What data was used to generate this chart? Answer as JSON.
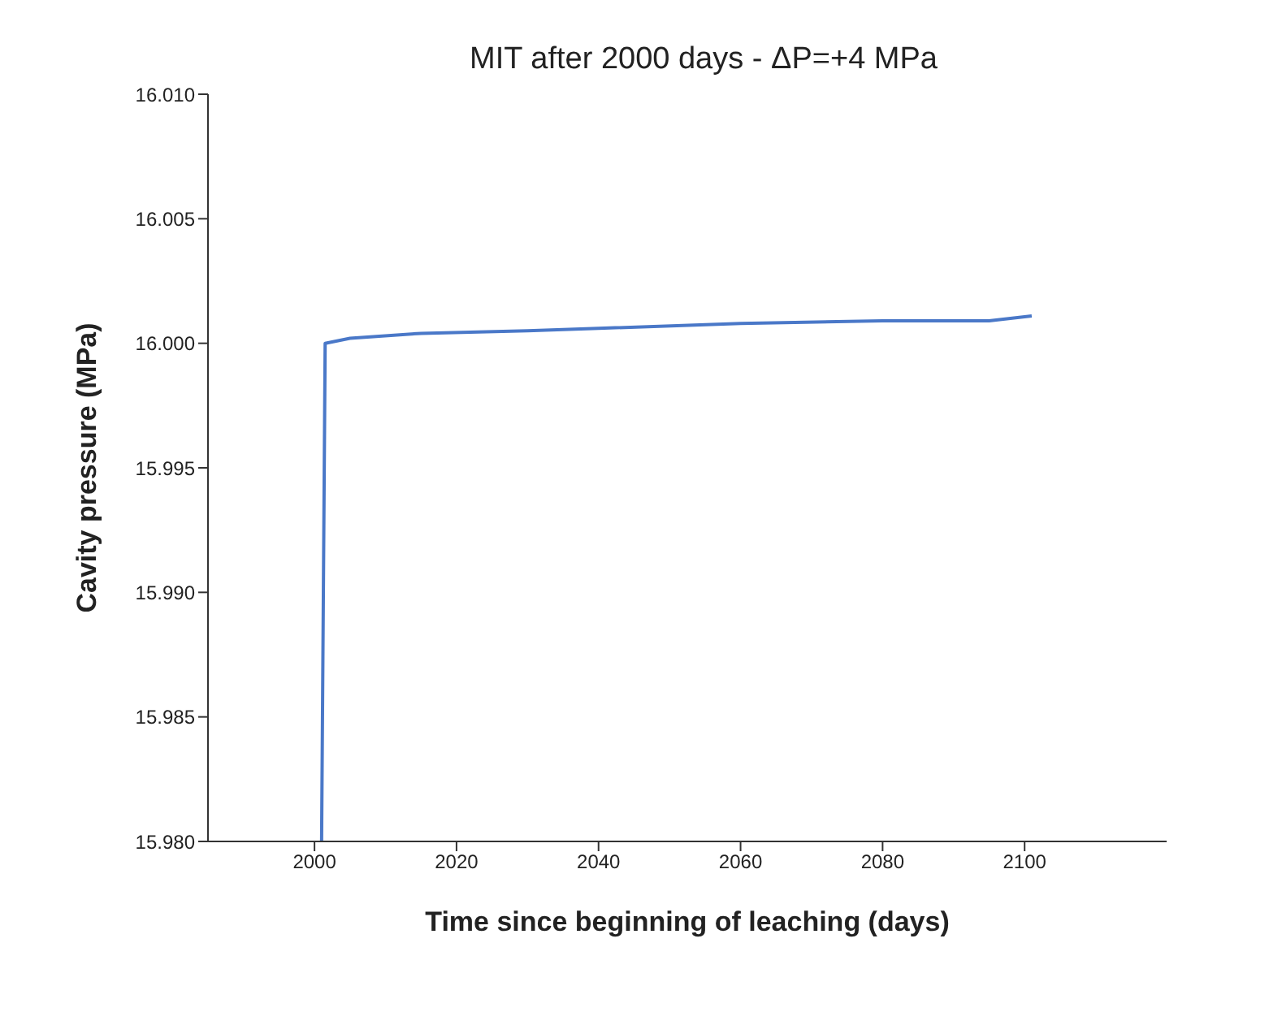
{
  "chart_data": {
    "type": "line",
    "title": "MIT after 2000 days - ΔP=+4 MPa",
    "xlabel": "Time since beginning of leaching (days)",
    "ylabel": "Cavity pressure (MPa)",
    "x": [
      2001,
      2001.5,
      2005,
      2015,
      2030,
      2040,
      2060,
      2080,
      2095,
      2101
    ],
    "series": [
      {
        "color": "#4a78c8",
        "values": [
          15.98,
          16.0,
          16.0002,
          16.0004,
          16.0005,
          16.0006,
          16.0008,
          16.0009,
          16.0009,
          16.0011
        ]
      }
    ],
    "xlim": [
      1985,
      2120
    ],
    "xticks": [
      2000,
      2020,
      2040,
      2060,
      2080,
      2100
    ],
    "ylim": [
      15.98,
      16.01
    ],
    "yticks": [
      {
        "value": 15.98,
        "label": "15.980"
      },
      {
        "value": 15.985,
        "label": "15.985"
      },
      {
        "value": 15.99,
        "label": "15.990"
      },
      {
        "value": 15.995,
        "label": "15.995"
      },
      {
        "value": 16.0,
        "label": "16.000"
      },
      {
        "value": 16.005,
        "label": "16.005"
      },
      {
        "value": 16.01,
        "label": "16.010"
      }
    ],
    "grid": false,
    "legend": false,
    "marker": "none",
    "line_style": "solid"
  }
}
